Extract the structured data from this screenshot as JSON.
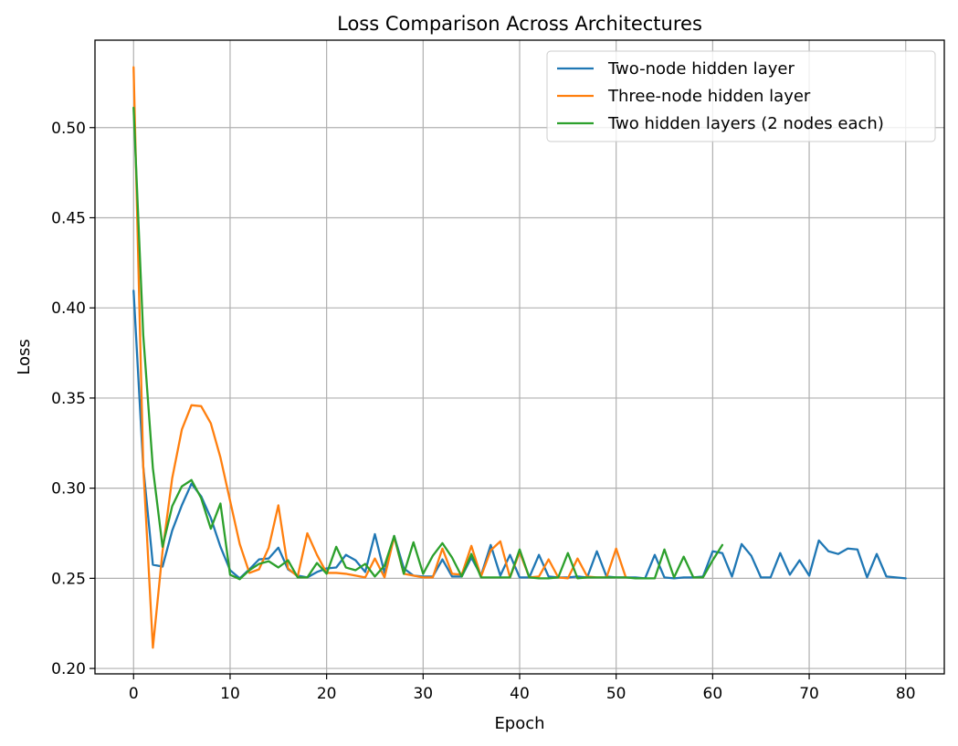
{
  "chart_data": {
    "type": "line",
    "title": "Loss Comparison Across Architectures",
    "xlabel": "Epoch",
    "ylabel": "Loss",
    "xlim": [
      -4,
      84
    ],
    "ylim": [
      0.197,
      0.5485
    ],
    "xticks": [
      0,
      10,
      20,
      30,
      40,
      50,
      60,
      70,
      80
    ],
    "yticks": [
      0.2,
      0.25,
      0.3,
      0.35,
      0.4,
      0.45,
      0.5
    ],
    "ytick_labels": [
      "0.20",
      "0.25",
      "0.30",
      "0.35",
      "0.40",
      "0.45",
      "0.50"
    ],
    "grid": true,
    "legend_position": "top-right",
    "series": [
      {
        "name": "Two-node hidden layer",
        "color": "#1f77b4",
        "values": [
          0.4095,
          0.312,
          0.2575,
          0.2565,
          0.2765,
          0.2905,
          0.3025,
          0.2955,
          0.2835,
          0.2675,
          0.2545,
          0.25,
          0.255,
          0.2605,
          0.261,
          0.267,
          0.255,
          0.2515,
          0.2505,
          0.2535,
          0.2555,
          0.256,
          0.263,
          0.26,
          0.2535,
          0.2745,
          0.253,
          0.2735,
          0.2555,
          0.2515,
          0.251,
          0.251,
          0.2605,
          0.251,
          0.251,
          0.2615,
          0.2515,
          0.2685,
          0.2515,
          0.263,
          0.2505,
          0.2505,
          0.263,
          0.251,
          0.2505,
          0.2505,
          0.251,
          0.2505,
          0.265,
          0.251,
          0.2505,
          0.2505,
          0.2505,
          0.25,
          0.263,
          0.2505,
          0.25,
          0.2505,
          0.2505,
          0.251,
          0.265,
          0.264,
          0.251,
          0.269,
          0.2625,
          0.2505,
          0.2505,
          0.264,
          0.252,
          0.26,
          0.2515,
          0.271,
          0.265,
          0.2635,
          0.2665,
          0.266,
          0.2505,
          0.2635,
          0.251,
          0.2505,
          0.25
        ]
      },
      {
        "name": "Three-node hidden layer",
        "color": "#ff7f0e",
        "values": [
          0.5335,
          0.3125,
          0.2115,
          0.265,
          0.3055,
          0.3325,
          0.346,
          0.3455,
          0.336,
          0.317,
          0.293,
          0.269,
          0.253,
          0.255,
          0.267,
          0.2905,
          0.2555,
          0.251,
          0.275,
          0.263,
          0.253,
          0.253,
          0.2525,
          0.2515,
          0.2505,
          0.261,
          0.2505,
          0.273,
          0.2525,
          0.2515,
          0.2505,
          0.2505,
          0.2665,
          0.2525,
          0.252,
          0.268,
          0.251,
          0.2655,
          0.2705,
          0.2505,
          0.2645,
          0.2505,
          0.251,
          0.2605,
          0.2505,
          0.25,
          0.261,
          0.251,
          0.2505,
          0.2505,
          0.2665,
          0.2505
        ]
      },
      {
        "name": "Two hidden layers (2 nodes each)",
        "color": "#2ca02c",
        "values": [
          0.511,
          0.385,
          0.311,
          0.2675,
          0.29,
          0.301,
          0.3045,
          0.2945,
          0.2775,
          0.2915,
          0.252,
          0.2495,
          0.2545,
          0.258,
          0.2595,
          0.256,
          0.26,
          0.2505,
          0.2505,
          0.2585,
          0.2525,
          0.2675,
          0.256,
          0.2545,
          0.258,
          0.251,
          0.257,
          0.2735,
          0.2525,
          0.27,
          0.2525,
          0.2625,
          0.2695,
          0.2615,
          0.251,
          0.2635,
          0.2505,
          0.2505,
          0.2505,
          0.2505,
          0.266,
          0.2505,
          0.25,
          0.25,
          0.2505,
          0.264,
          0.25,
          0.2505,
          0.2505,
          0.2505,
          0.2505,
          0.2505,
          0.25,
          0.25,
          0.25,
          0.266,
          0.2505,
          0.262,
          0.2505,
          0.2505,
          0.26,
          0.2685
        ]
      }
    ]
  }
}
